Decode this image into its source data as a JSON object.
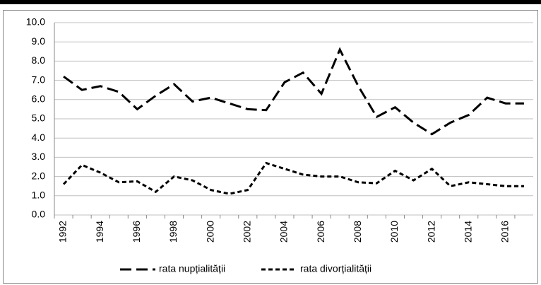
{
  "chart_data": {
    "type": "line",
    "categories": [
      1992,
      null,
      1994,
      null,
      1996,
      null,
      1998,
      null,
      2000,
      null,
      2002,
      null,
      2004,
      null,
      2006,
      null,
      2008,
      null,
      2010,
      null,
      2012,
      null,
      2014,
      null,
      2016,
      null
    ],
    "series": [
      {
        "name": "rata nupțialității",
        "color": "#000000",
        "dash": "16,7",
        "values": [
          7.2,
          6.5,
          6.7,
          6.4,
          5.5,
          6.2,
          6.8,
          5.9,
          6.1,
          5.8,
          5.5,
          5.45,
          6.9,
          7.4,
          6.3,
          8.6,
          6.7,
          5.1,
          5.6,
          4.8,
          4.2,
          4.8,
          5.2,
          6.1,
          5.8,
          5.8
        ]
      },
      {
        "name": "rata divorțialității",
        "color": "#000000",
        "dash": "6,4",
        "values": [
          1.6,
          2.6,
          2.2,
          1.7,
          1.75,
          1.2,
          2.0,
          1.8,
          1.3,
          1.1,
          1.3,
          2.7,
          2.4,
          2.1,
          2.0,
          2.0,
          1.7,
          1.65,
          2.3,
          1.8,
          2.4,
          1.5,
          1.7,
          1.6,
          1.5,
          1.5
        ]
      }
    ],
    "ylim": [
      0,
      10
    ],
    "yticks": [
      {
        "value": 0,
        "label": "0.0"
      },
      {
        "value": 1,
        "label": "1.0"
      },
      {
        "value": 2,
        "label": "2.0"
      },
      {
        "value": 3,
        "label": "3.0"
      },
      {
        "value": 4,
        "label": "4.0"
      },
      {
        "value": 5,
        "label": "5.0"
      },
      {
        "value": 6,
        "label": "6.0"
      },
      {
        "value": 7,
        "label": "7.0"
      },
      {
        "value": 8,
        "label": "8.0"
      },
      {
        "value": 9,
        "label": "9.0"
      },
      {
        "value": 10,
        "label": "10.0"
      }
    ],
    "grid": true
  }
}
